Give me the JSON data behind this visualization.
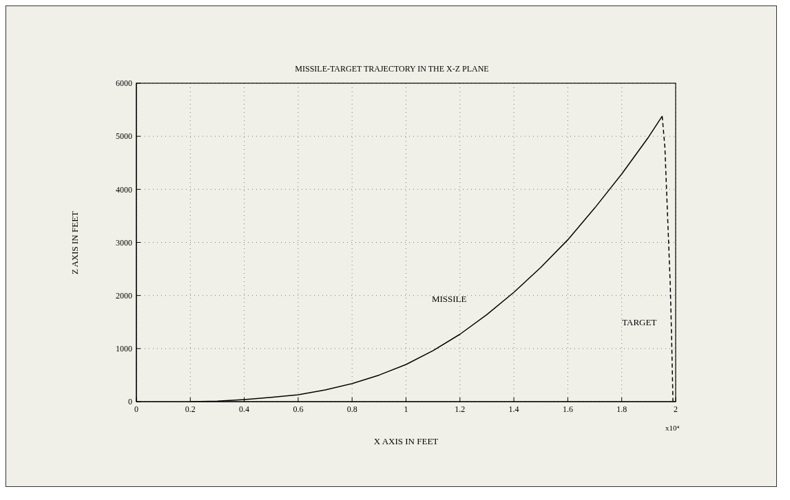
{
  "chart_data": {
    "type": "line",
    "title": "MISSILE-TARGET TRAJECTORY IN THE X-Z PLANE",
    "xlabel": "X AXIS IN FEET",
    "ylabel": "Z AXIS IN FEET",
    "annotations": [
      "x10⁴"
    ],
    "xlim": [
      0,
      2
    ],
    "ylim": [
      0,
      6000
    ],
    "xticks": [
      0,
      0.2,
      0.4,
      0.6,
      0.8,
      1,
      1.2,
      1.4,
      1.6,
      1.8,
      2
    ],
    "yticks": [
      0,
      1000,
      2000,
      3000,
      4000,
      5000,
      6000
    ],
    "grid": true,
    "series": [
      {
        "name": "MISSILE",
        "color": "#000000",
        "line_style": "solid",
        "x": [
          0.2,
          0.3,
          0.4,
          0.5,
          0.6,
          0.7,
          0.8,
          0.9,
          1,
          1.1,
          1.2,
          1.3,
          1.4,
          1.5,
          1.6,
          1.7,
          1.8,
          1.9,
          1.95
        ],
        "values": [
          0,
          10,
          40,
          80,
          130,
          220,
          340,
          500,
          700,
          960,
          1270,
          1640,
          2060,
          2530,
          3050,
          3650,
          4290,
          4990,
          5380
        ]
      },
      {
        "name": "TARGET",
        "color": "#000000",
        "line_style": "dashed",
        "x": [
          1.95,
          1.96,
          1.97,
          1.98,
          1.985,
          1.99
        ],
        "values": [
          5380,
          4800,
          3500,
          2200,
          1200,
          0
        ]
      }
    ]
  }
}
